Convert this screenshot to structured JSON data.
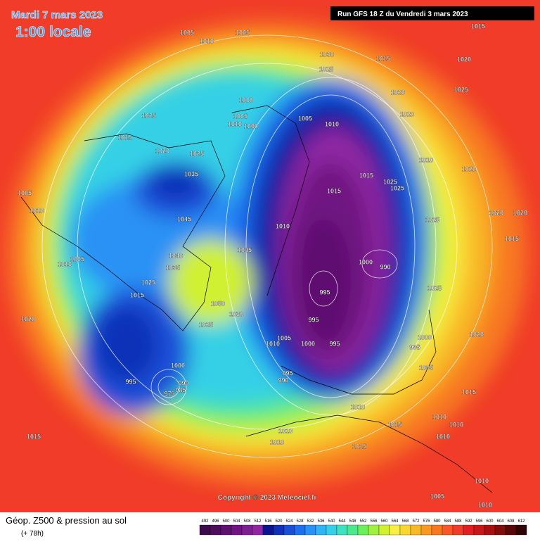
{
  "header": {
    "date": "Mardi 7 mars 2023",
    "time": "1:00 locale",
    "run": "Run GFS 18 Z du Vendredi 3 mars 2023"
  },
  "footer": {
    "title": "Géop. Z500 & pression au sol",
    "lead": "(+ 78h)",
    "copyright": "Copyright © 2023 Meteociel.fr"
  },
  "isobars": [
    1005,
    1010,
    1005,
    1015,
    1030,
    1025,
    1015,
    1020,
    1020,
    1025,
    1025,
    1000,
    1005,
    1010,
    1000,
    1005,
    1010,
    1020,
    1015,
    1020,
    1025,
    1010,
    1020,
    1035,
    1015,
    1025,
    1025,
    1015,
    1005,
    1010,
    1045,
    1010,
    1025,
    1020,
    1020,
    1015,
    1045,
    1040,
    1035,
    1000,
    990,
    1005,
    1010,
    1025,
    1025,
    995,
    1015,
    1050,
    1030,
    1020,
    995,
    1025,
    1005,
    1000,
    995,
    1010,
    1020,
    1000,
    995,
    1000,
    995,
    990,
    985,
    975,
    995,
    990,
    1005,
    1015,
    1010,
    1015,
    1010,
    1010,
    1010,
    1010,
    1015,
    1015,
    1010,
    1010,
    1005,
    1010
  ],
  "scale": {
    "labels": [
      492,
      496,
      500,
      504,
      508,
      512,
      516,
      520,
      524,
      528,
      532,
      536,
      540,
      544,
      548,
      552,
      556,
      560,
      564,
      568,
      572,
      576,
      580,
      584,
      588,
      592,
      596,
      600,
      604,
      608,
      612
    ],
    "colors": [
      "#3c0a4a",
      "#4d0c5c",
      "#5e0f70",
      "#701482",
      "#7f1d93",
      "#8f27a3",
      "#0a1490",
      "#1030b8",
      "#1a50d8",
      "#1f6ff0",
      "#2a92f5",
      "#30b4f5",
      "#35d0e6",
      "#40e0c0",
      "#4be890",
      "#6cef5a",
      "#a0f040",
      "#d0f030",
      "#f8f040",
      "#f8d830",
      "#f8b828",
      "#f89820",
      "#f87820",
      "#f85828",
      "#f03c28",
      "#e02020",
      "#c81818",
      "#a81010",
      "#800c0c",
      "#580808",
      "#300404"
    ]
  }
}
